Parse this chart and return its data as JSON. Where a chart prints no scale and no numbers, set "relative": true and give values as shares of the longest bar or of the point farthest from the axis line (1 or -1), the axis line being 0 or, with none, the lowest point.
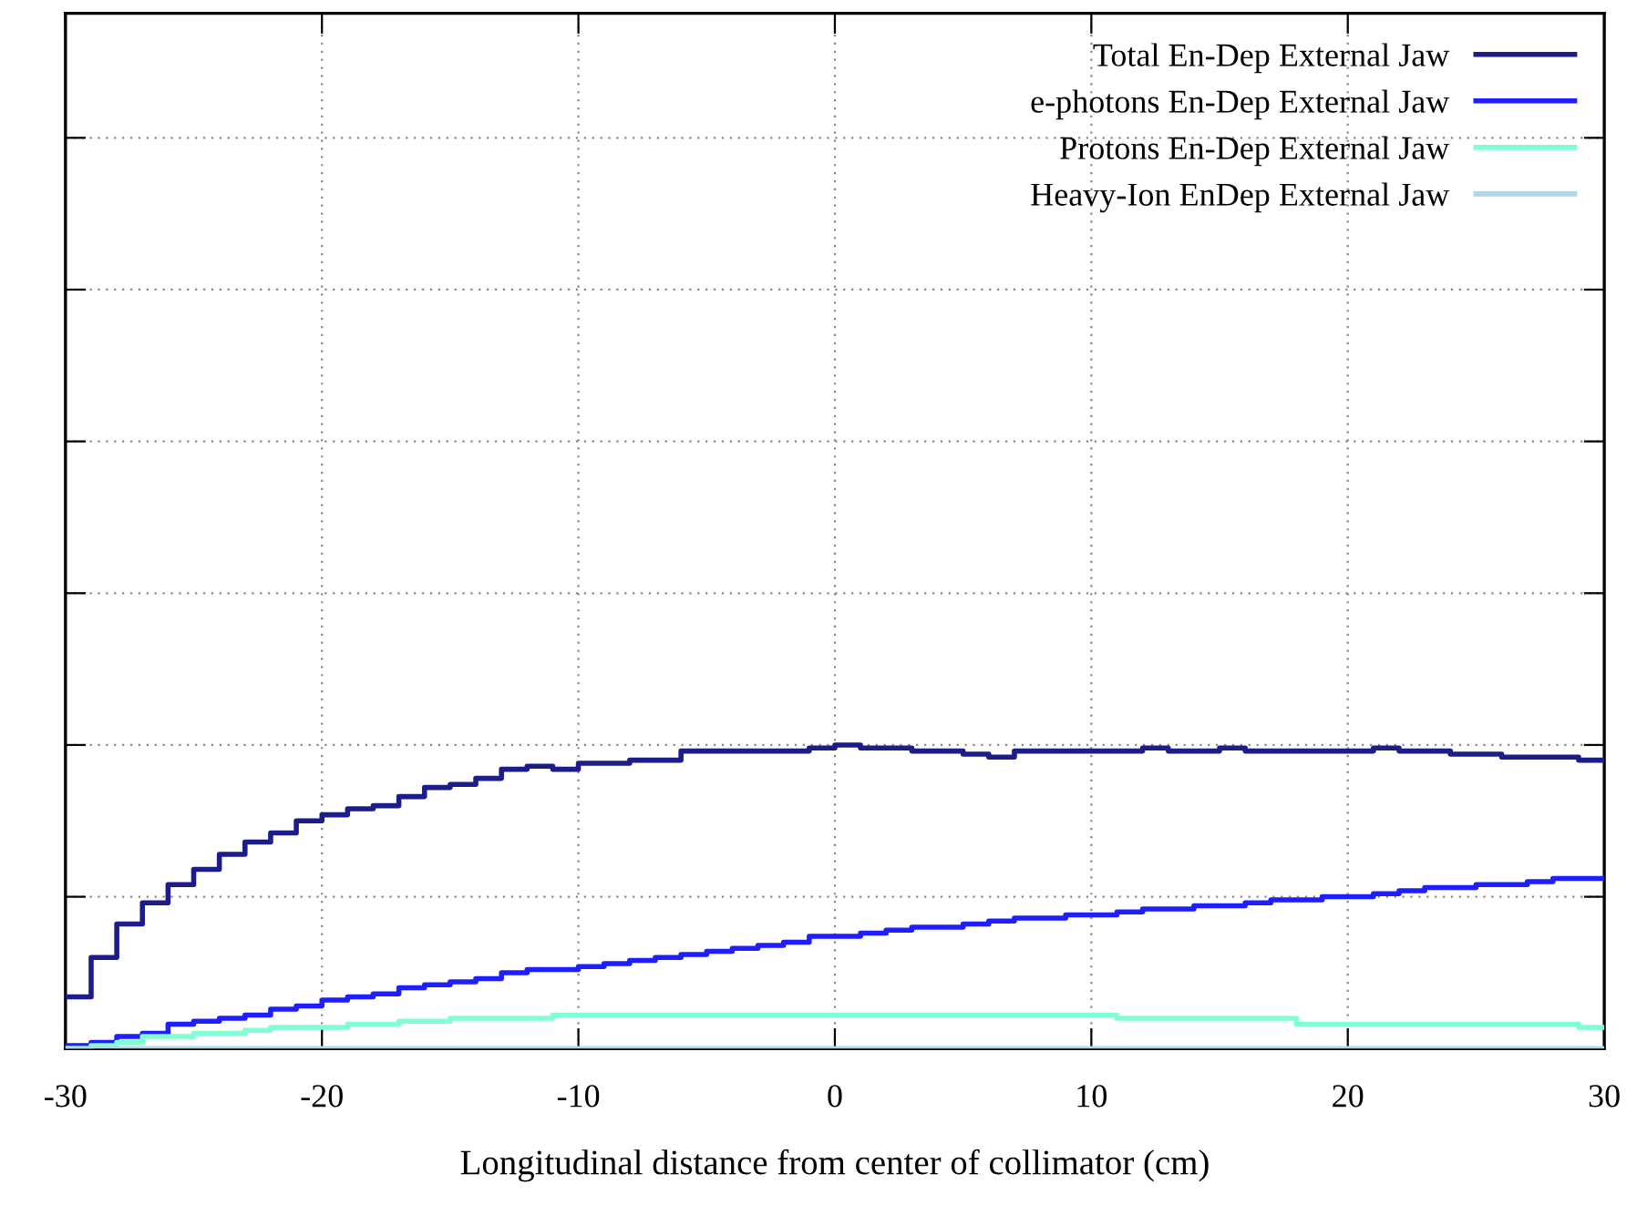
{
  "chart_data": {
    "type": "step",
    "xlabel": "Longitudinal distance from center of collimator (cm)",
    "x": [
      -30,
      -29,
      -28,
      -27,
      -26,
      -25,
      -24,
      -23,
      -22,
      -21,
      -20,
      -19,
      -18,
      -17,
      -16,
      -15,
      -14,
      -13,
      -12,
      -11,
      -10,
      -9,
      -8,
      -7,
      -6,
      -5,
      -4,
      -3,
      -2,
      -1,
      0,
      1,
      2,
      3,
      4,
      5,
      6,
      7,
      8,
      9,
      10,
      11,
      12,
      13,
      14,
      15,
      16,
      17,
      18,
      19,
      20,
      21,
      22,
      23,
      24,
      25,
      26,
      27,
      28,
      29,
      30
    ],
    "xlim": [
      -30,
      30
    ],
    "xticks": [
      -30,
      -20,
      -10,
      0,
      10,
      20,
      30
    ],
    "relative": true,
    "tick_labels": "x",
    "grid": true,
    "legend": "top right",
    "series": [
      {
        "name": "Total En-Dep External Jaw",
        "color": "#1c1c8a",
        "values": [
          0.17,
          0.3,
          0.41,
          0.48,
          0.54,
          0.59,
          0.64,
          0.68,
          0.71,
          0.75,
          0.77,
          0.79,
          0.8,
          0.83,
          0.86,
          0.87,
          0.89,
          0.92,
          0.93,
          0.92,
          0.94,
          0.94,
          0.95,
          0.95,
          0.98,
          0.98,
          0.98,
          0.98,
          0.98,
          0.99,
          1,
          0.99,
          0.99,
          0.98,
          0.98,
          0.97,
          0.96,
          0.98,
          0.98,
          0.98,
          0.98,
          0.98,
          0.99,
          0.98,
          0.98,
          0.99,
          0.98,
          0.98,
          0.98,
          0.98,
          0.98,
          0.99,
          0.98,
          0.98,
          0.97,
          0.97,
          0.96,
          0.96,
          0.96,
          0.95,
          0.95
        ]
      },
      {
        "name": "e-photons En-Dep External Jaw",
        "color": "#1e1eff",
        "values": [
          0.01,
          0.02,
          0.04,
          0.05,
          0.08,
          0.09,
          0.1,
          0.11,
          0.13,
          0.14,
          0.16,
          0.17,
          0.18,
          0.2,
          0.21,
          0.22,
          0.23,
          0.25,
          0.26,
          0.26,
          0.27,
          0.28,
          0.29,
          0.3,
          0.31,
          0.32,
          0.33,
          0.34,
          0.35,
          0.37,
          0.37,
          0.38,
          0.39,
          0.4,
          0.4,
          0.41,
          0.42,
          0.43,
          0.43,
          0.44,
          0.44,
          0.45,
          0.46,
          0.46,
          0.47,
          0.47,
          0.48,
          0.49,
          0.49,
          0.5,
          0.5,
          0.51,
          0.52,
          0.53,
          0.53,
          0.54,
          0.54,
          0.55,
          0.56,
          0.56,
          0.56
        ]
      },
      {
        "name": "Protons En-Dep External Jaw",
        "color": "#7fffd4",
        "values": [
          0,
          0.01,
          0.02,
          0.04,
          0.04,
          0.05,
          0.05,
          0.06,
          0.07,
          0.07,
          0.07,
          0.08,
          0.08,
          0.09,
          0.09,
          0.1,
          0.1,
          0.1,
          0.1,
          0.11,
          0.11,
          0.11,
          0.11,
          0.11,
          0.11,
          0.11,
          0.11,
          0.11,
          0.11,
          0.11,
          0.11,
          0.11,
          0.11,
          0.11,
          0.11,
          0.11,
          0.11,
          0.11,
          0.11,
          0.11,
          0.11,
          0.1,
          0.1,
          0.1,
          0.1,
          0.1,
          0.1,
          0.1,
          0.08,
          0.08,
          0.08,
          0.08,
          0.08,
          0.08,
          0.08,
          0.08,
          0.08,
          0.08,
          0.08,
          0.07,
          0.07
        ]
      },
      {
        "name": "Heavy-Ion EnDep External Jaw",
        "color": "#add8e6",
        "values": [
          0,
          0,
          0,
          0,
          0,
          0,
          0,
          0,
          0,
          0,
          0,
          0,
          0,
          0,
          0,
          0,
          0,
          0,
          0,
          0,
          0,
          0,
          0,
          0,
          0,
          0,
          0,
          0,
          0,
          0,
          0,
          0,
          0,
          0,
          0,
          0,
          0,
          0,
          0,
          0,
          0,
          0,
          0,
          0,
          0,
          0,
          0,
          0,
          0,
          0,
          0,
          0,
          0,
          0,
          0,
          0,
          0,
          0,
          0,
          0,
          0
        ]
      }
    ]
  }
}
